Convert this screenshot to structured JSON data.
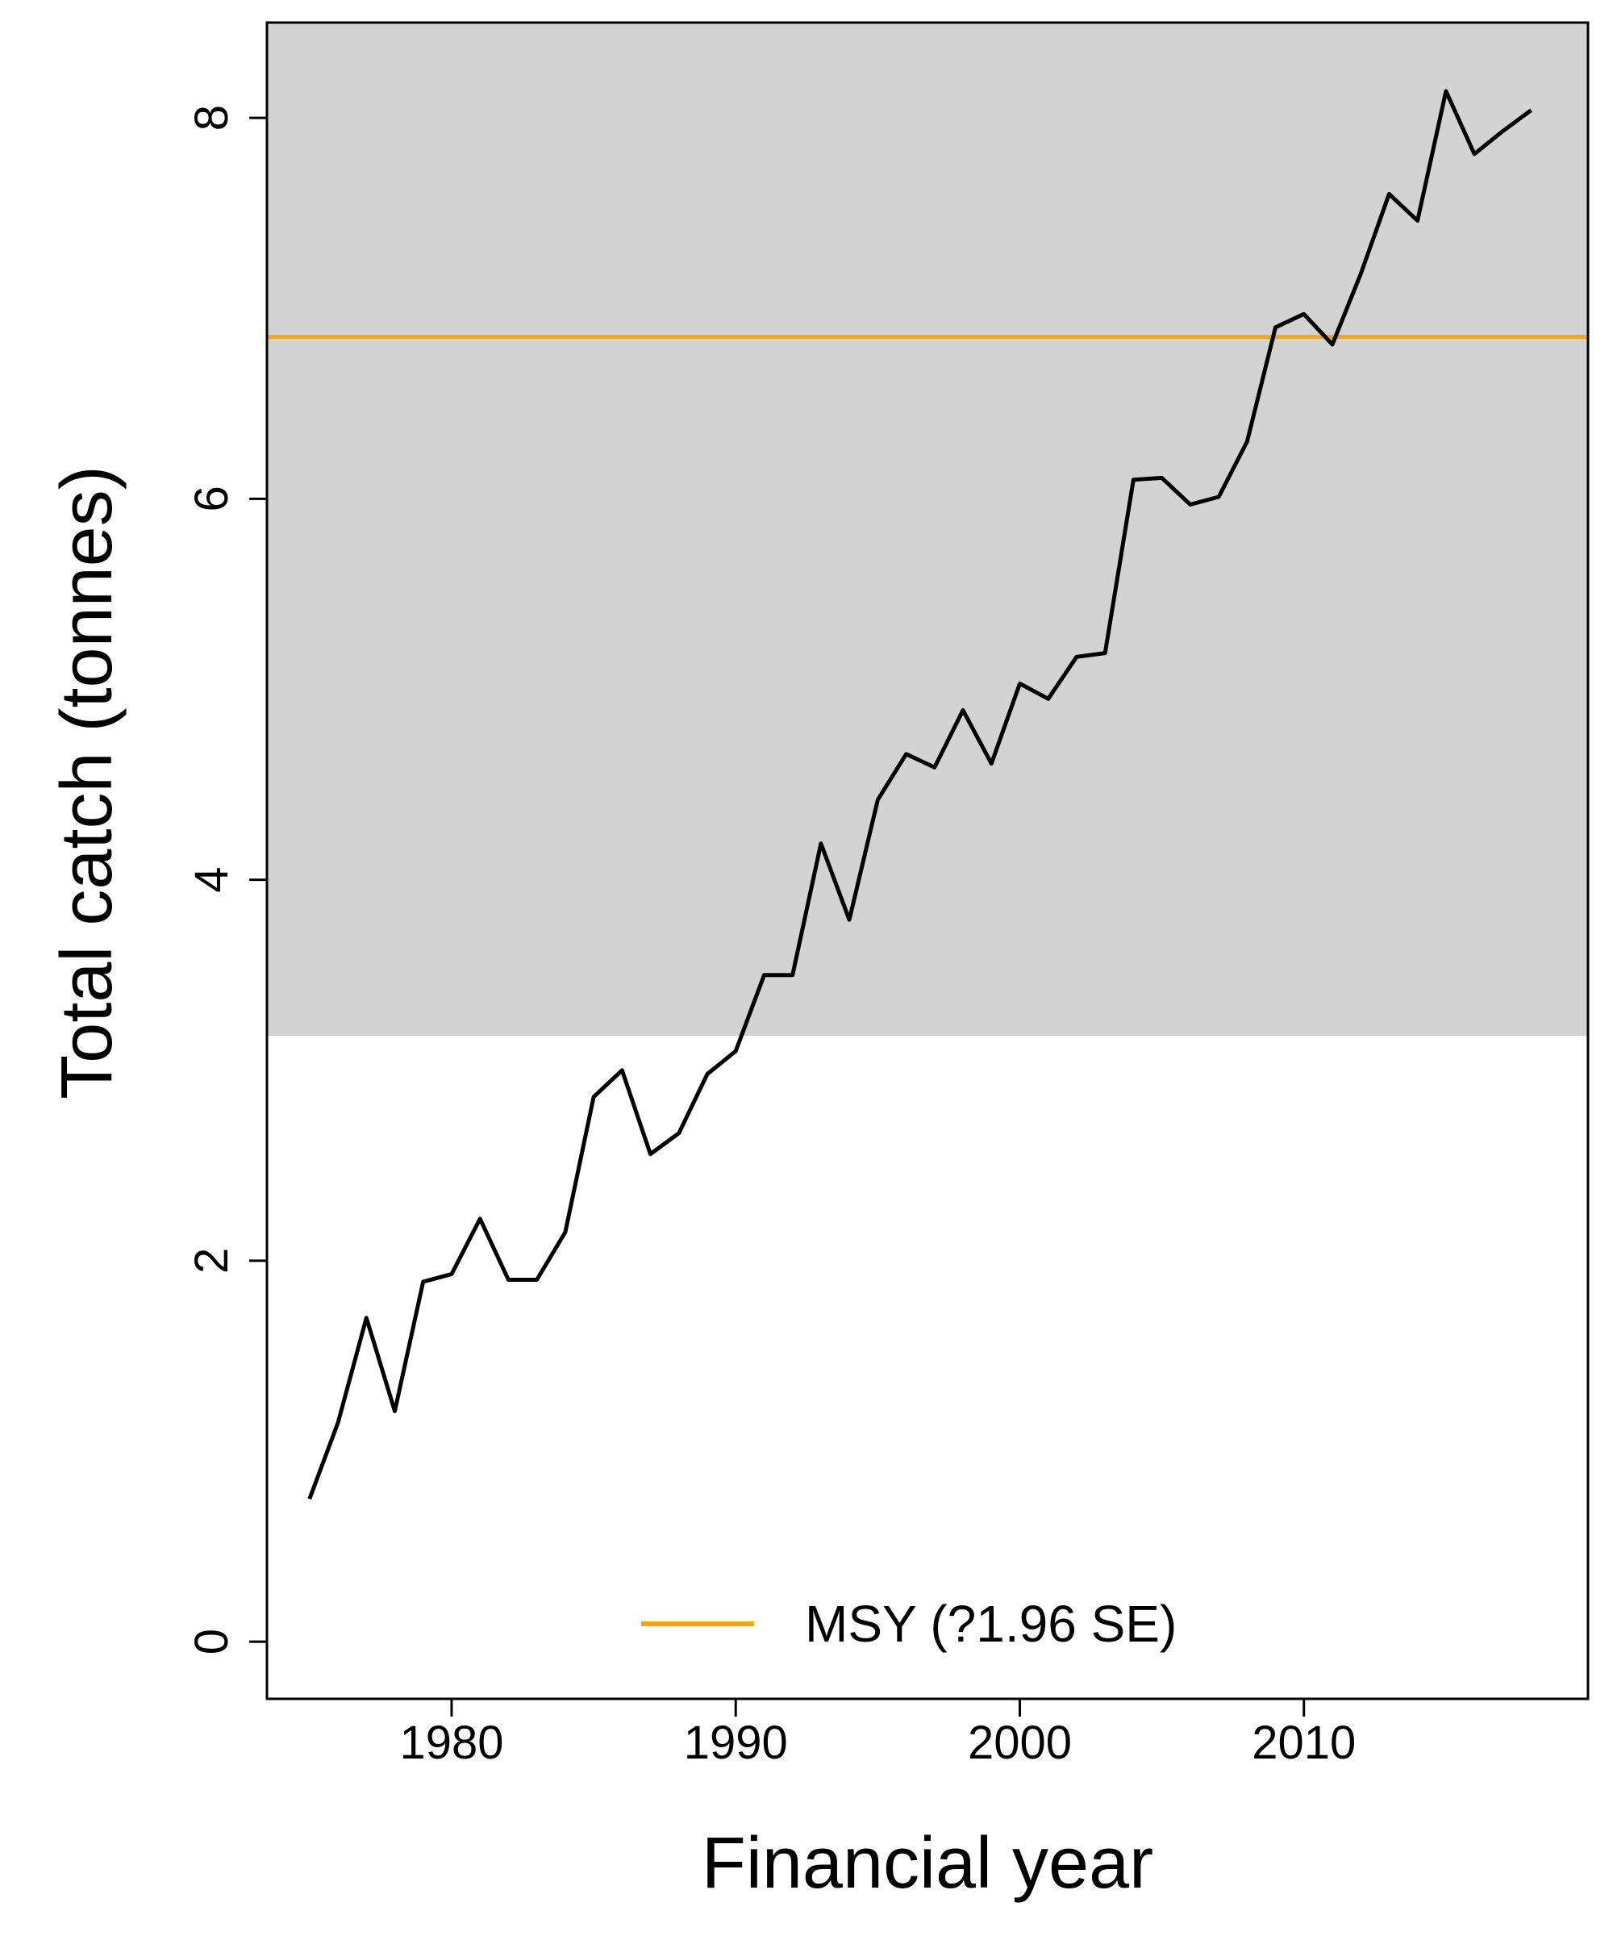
{
  "chart_data": {
    "type": "line",
    "xlabel": "Financial year",
    "ylabel": "Total catch (tonnes)",
    "xlim": [
      1973.5,
      2020
    ],
    "ylim": [
      -0.3,
      8.5
    ],
    "xticks": [
      1980,
      1990,
      2000,
      2010
    ],
    "yticks": [
      0,
      2,
      4,
      6,
      8
    ],
    "grid": false,
    "colors": {
      "plot_background": "#ffffff",
      "band": "#d3d3d3",
      "catch_line": "#000000",
      "msy_line": "#ffa500"
    },
    "msy": {
      "value": 6.85,
      "lower": 3.18,
      "upper": 8.5,
      "legend_label": "MSY (?1.96 SE)"
    },
    "legend_position": "bottom",
    "series": [
      {
        "x": [
          1975,
          1976,
          1977,
          1978,
          1979,
          1980,
          1981,
          1982,
          1983,
          1984,
          1985,
          1986,
          1987,
          1988,
          1989,
          1990,
          1991,
          1992,
          1993,
          1994,
          1995,
          1996,
          1997,
          1998,
          1999,
          2000,
          2001,
          2002,
          2003,
          2004,
          2005,
          2006,
          2007,
          2008,
          2009,
          2010,
          2011,
          2012,
          2013,
          2014,
          2015,
          2016,
          2017,
          2018
        ],
        "values": [
          0.75,
          1.15,
          1.7,
          1.21,
          1.89,
          1.93,
          2.22,
          1.9,
          1.9,
          2.15,
          2.86,
          3.0,
          2.56,
          2.67,
          2.98,
          3.1,
          3.5,
          3.5,
          4.19,
          3.79,
          4.42,
          4.66,
          4.59,
          4.89,
          4.61,
          5.03,
          4.95,
          5.17,
          5.19,
          6.1,
          6.11,
          5.97,
          6.01,
          6.3,
          6.9,
          6.97,
          6.81,
          7.18,
          7.6,
          7.46,
          8.14,
          7.81,
          7.93,
          8.04
        ]
      }
    ]
  }
}
